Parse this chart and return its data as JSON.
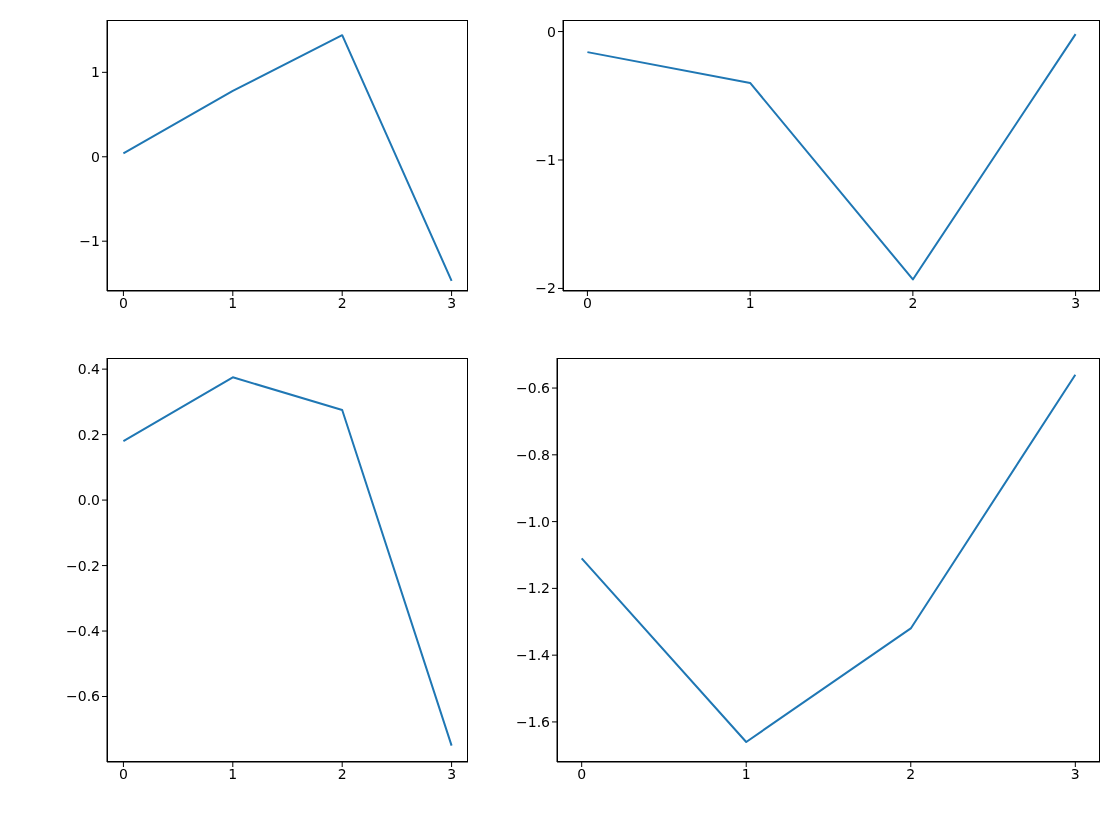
{
  "chart_data": [
    {
      "type": "line",
      "x": [
        0,
        1,
        2,
        3
      ],
      "series": [
        {
          "color": "#1f77b4",
          "values": [
            0.04,
            0.78,
            1.44,
            -1.47
          ]
        }
      ],
      "xlim": [
        -0.15,
        3.15
      ],
      "xticks": [
        0,
        1,
        2,
        3
      ],
      "ylim": [
        -1.59,
        1.62
      ],
      "yticks": [
        {
          "value": -1,
          "label": "−1"
        },
        0,
        1
      ]
    },
    {
      "type": "line",
      "x": [
        0,
        1,
        2,
        3
      ],
      "series": [
        {
          "color": "#1f77b4",
          "values": [
            -0.16,
            -0.4,
            -1.93,
            -0.02
          ]
        }
      ],
      "xlim": [
        -0.15,
        3.15
      ],
      "xticks": [
        0,
        1,
        2,
        3
      ],
      "ylim": [
        -2.02,
        0.09
      ],
      "yticks": [
        {
          "value": -2,
          "label": "−2"
        },
        {
          "value": -1,
          "label": "−1"
        },
        0
      ]
    },
    {
      "type": "line",
      "x": [
        0,
        1,
        2,
        3
      ],
      "series": [
        {
          "color": "#1f77b4",
          "values": [
            0.18,
            0.375,
            0.275,
            -0.75
          ]
        }
      ],
      "xlim": [
        -0.15,
        3.15
      ],
      "xticks": [
        0,
        1,
        2,
        3
      ],
      "ylim": [
        -0.8,
        0.434
      ],
      "yticks": [
        {
          "value": -0.6,
          "label": "−0.6"
        },
        {
          "value": -0.4,
          "label": "−0.4"
        },
        {
          "value": -0.2,
          "label": "−0.2"
        },
        {
          "value": 0,
          "label": "0.0"
        },
        0.2,
        0.4
      ]
    },
    {
      "type": "line",
      "x": [
        0,
        1,
        2,
        3
      ],
      "series": [
        {
          "color": "#1f77b4",
          "values": [
            -1.11,
            -1.66,
            -1.32,
            -0.56
          ]
        }
      ],
      "xlim": [
        -0.15,
        3.15
      ],
      "xticks": [
        0,
        1,
        2,
        3
      ],
      "ylim": [
        -1.72,
        -0.51
      ],
      "yticks": [
        {
          "value": -1.6,
          "label": "−1.6"
        },
        {
          "value": -1.4,
          "label": "−1.4"
        },
        {
          "value": -1.2,
          "label": "−1.2"
        },
        {
          "value": -1,
          "label": "−1.0"
        },
        {
          "value": -0.8,
          "label": "−0.8"
        },
        {
          "value": -0.6,
          "label": "−0.6"
        }
      ]
    }
  ]
}
